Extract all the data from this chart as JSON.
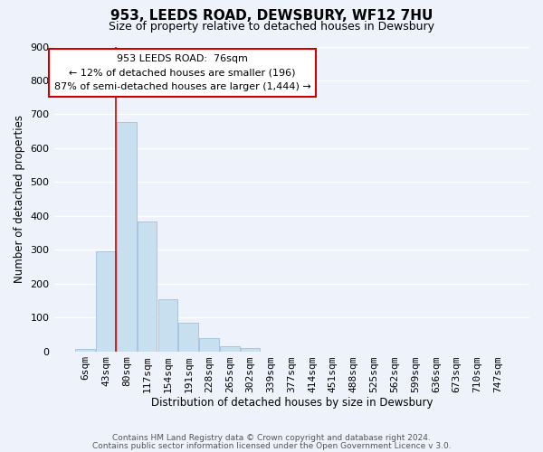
{
  "title": "953, LEEDS ROAD, DEWSBURY, WF12 7HU",
  "subtitle": "Size of property relative to detached houses in Dewsbury",
  "xlabel": "Distribution of detached houses by size in Dewsbury",
  "ylabel": "Number of detached properties",
  "bar_labels": [
    "6sqm",
    "43sqm",
    "80sqm",
    "117sqm",
    "154sqm",
    "191sqm",
    "228sqm",
    "265sqm",
    "302sqm",
    "339sqm",
    "377sqm",
    "414sqm",
    "451sqm",
    "488sqm",
    "525sqm",
    "562sqm",
    "599sqm",
    "636sqm",
    "673sqm",
    "710sqm",
    "747sqm"
  ],
  "bar_values": [
    8,
    296,
    678,
    383,
    153,
    85,
    40,
    14,
    10,
    0,
    0,
    0,
    0,
    0,
    0,
    0,
    0,
    0,
    0,
    0,
    0
  ],
  "bar_color": "#c8dff0",
  "bar_edge_color": "#a0c0dc",
  "vline_x_index": 2,
  "vline_color": "#cc0000",
  "annotation_title": "953 LEEDS ROAD:  76sqm",
  "annotation_line1": "← 12% of detached houses are smaller (196)",
  "annotation_line2": "87% of semi-detached houses are larger (1,444) →",
  "annotation_box_color": "#ffffff",
  "annotation_box_edge": "#cc0000",
  "ylim": [
    0,
    900
  ],
  "yticks": [
    0,
    100,
    200,
    300,
    400,
    500,
    600,
    700,
    800,
    900
  ],
  "footer1": "Contains HM Land Registry data © Crown copyright and database right 2024.",
  "footer2": "Contains public sector information licensed under the Open Government Licence v 3.0.",
  "background_color": "#eef2fb",
  "grid_color": "#ffffff"
}
